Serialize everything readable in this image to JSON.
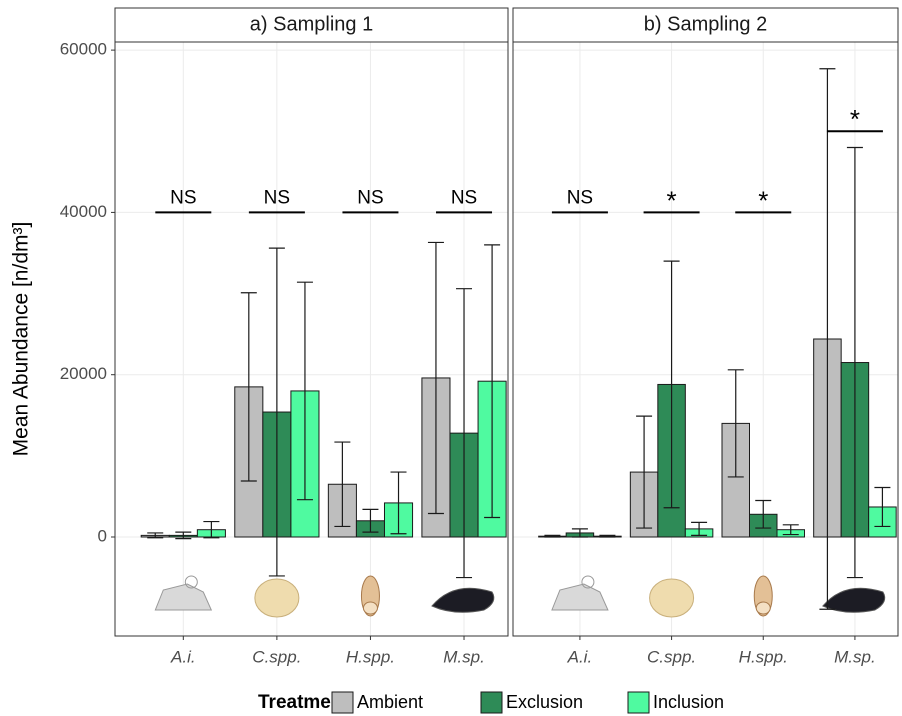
{
  "chart_data": [
    {
      "type": "bar",
      "title": "a) Sampling 1",
      "y_label": "Mean Abundance [n/dm³]",
      "legend_title": "Treatment",
      "categories": [
        "A.i.",
        "C.spp.",
        "H.spp.",
        "M.sp."
      ],
      "series": [
        {
          "name": "Ambient",
          "color": "#bebebe",
          "values": [
            200,
            18500,
            6500,
            19600
          ],
          "errors": [
            300,
            11600,
            5200,
            16700
          ]
        },
        {
          "name": "Exclusion",
          "color": "#2e8b57",
          "values": [
            200,
            15400,
            2000,
            12800
          ],
          "errors": [
            400,
            20200,
            1400,
            17800
          ]
        },
        {
          "name": "Inclusion",
          "color": "#4ffaa0",
          "values": [
            900,
            18000,
            4200,
            19200
          ],
          "errors": [
            1000,
            13400,
            3800,
            16800
          ]
        }
      ],
      "annotations": [
        {
          "text": "NS",
          "y": 40000
        },
        {
          "text": "NS",
          "y": 40000
        },
        {
          "text": "NS",
          "y": 40000
        },
        {
          "text": "NS",
          "y": 40000
        }
      ],
      "ylim": [
        -12200,
        61000
      ],
      "yticks": [
        0,
        20000,
        40000,
        60000
      ],
      "grid": true
    },
    {
      "type": "bar",
      "title": "b) Sampling 2",
      "categories": [
        "A.i.",
        "C.spp.",
        "H.spp.",
        "M.sp."
      ],
      "series": [
        {
          "name": "Ambient",
          "color": "#bebebe",
          "values": [
            100,
            8000,
            14000,
            24400
          ],
          "errors": [
            100,
            6900,
            6600,
            33300
          ]
        },
        {
          "name": "Exclusion",
          "color": "#2e8b57",
          "values": [
            500,
            18800,
            2800,
            21500
          ],
          "errors": [
            500,
            15200,
            1700,
            26500
          ]
        },
        {
          "name": "Inclusion",
          "color": "#4ffaa0",
          "values": [
            100,
            1000,
            900,
            3700
          ],
          "errors": [
            100,
            800,
            600,
            2400
          ]
        }
      ],
      "annotations": [
        {
          "text": "NS",
          "y": 40000
        },
        {
          "text": "*",
          "y": 40000
        },
        {
          "text": "*",
          "y": 40000
        },
        {
          "text": "*",
          "y": 50000
        }
      ],
      "ylim": [
        -12200,
        61000
      ],
      "yticks": [
        0,
        20000,
        40000,
        60000
      ],
      "grid": true
    }
  ]
}
